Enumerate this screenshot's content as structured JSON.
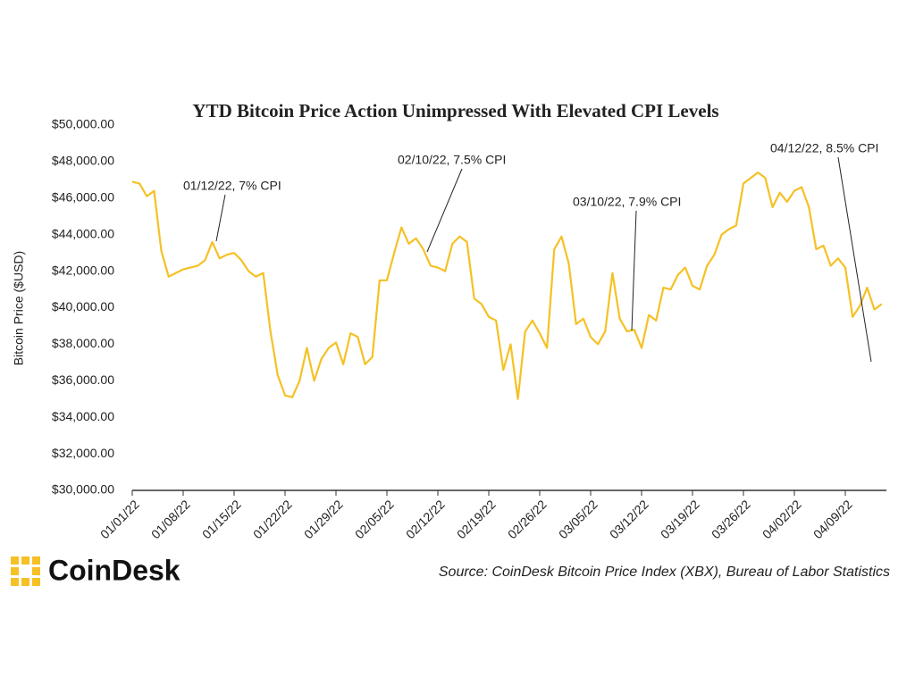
{
  "chart_data": {
    "type": "line",
    "title": "YTD Bitcoin Price Action Unimpressed With Elevated CPI Levels",
    "y_label": "Bitcoin Price ($USD)",
    "source": "Source: CoinDesk Bitcoin Price Index (XBX), Bureau of Labor Statistics",
    "brand": "CoinDesk",
    "annotations": [
      "01/12/22, 7% CPI",
      "02/10/22, 7.5% CPI",
      "03/10/22, 7.9% CPI",
      "04/12/22, 8.5% CPI"
    ],
    "categories": [
      "01/01/22",
      null,
      null,
      null,
      null,
      null,
      null,
      "01/08/22",
      null,
      null,
      null,
      null,
      null,
      null,
      "01/15/22",
      null,
      null,
      null,
      null,
      null,
      null,
      "01/22/22",
      null,
      null,
      null,
      null,
      null,
      null,
      "01/29/22",
      null,
      null,
      null,
      null,
      null,
      null,
      "02/05/22",
      null,
      null,
      null,
      null,
      null,
      null,
      "02/12/22",
      null,
      null,
      null,
      null,
      null,
      null,
      "02/19/22",
      null,
      null,
      null,
      null,
      null,
      null,
      "02/26/22",
      null,
      null,
      null,
      null,
      null,
      null,
      "03/05/22",
      null,
      null,
      null,
      null,
      null,
      null,
      "03/12/22",
      null,
      null,
      null,
      null,
      null,
      null,
      "03/19/22",
      null,
      null,
      null,
      null,
      null,
      null,
      "03/26/22",
      null,
      null,
      null,
      null,
      null,
      null,
      "04/02/22",
      null,
      null,
      null,
      null,
      null,
      null,
      "04/09/22",
      null,
      null,
      null,
      null,
      null
    ],
    "series": [
      {
        "name": "Bitcoin Price",
        "color": "#f5c125",
        "values": [
          46900,
          46800,
          46100,
          46400,
          43100,
          41700,
          41900,
          42100,
          42200,
          42300,
          42600,
          43600,
          42700,
          42900,
          43000,
          42600,
          42000,
          41700,
          41900,
          38700,
          36300,
          35200,
          35100,
          36000,
          37800,
          36000,
          37200,
          37800,
          38100,
          36900,
          38600,
          38400,
          36900,
          37300,
          41500,
          41500,
          43000,
          44400,
          43500,
          43800,
          43200,
          42300,
          42200,
          42000,
          43500,
          43900,
          43600,
          40500,
          40200,
          39500,
          39300,
          36600,
          38000,
          35000,
          38700,
          39300,
          38600,
          37800,
          43200,
          43900,
          42400,
          39100,
          39400,
          38400,
          38000,
          38700,
          41900,
          39400,
          38700,
          38800,
          37800,
          39600,
          39300,
          41100,
          41000,
          41800,
          42200,
          41200,
          41000,
          42300,
          42900,
          44000,
          44300,
          44500,
          46800,
          47100,
          47400,
          47100,
          45500,
          46300,
          45800,
          46400,
          46600,
          45500,
          43200,
          43400,
          42300,
          42700,
          42200,
          39500,
          40100,
          41100,
          39900,
          40200
        ]
      }
    ],
    "ylim": [
      30000,
      50000
    ],
    "yticks": [
      {
        "value": 30000,
        "label": "$30,000.00"
      },
      {
        "value": 32000,
        "label": "$32,000.00"
      },
      {
        "value": 34000,
        "label": "$34,000.00"
      },
      {
        "value": 36000,
        "label": "$36,000.00"
      },
      {
        "value": 38000,
        "label": "$38,000.00"
      },
      {
        "value": 40000,
        "label": "$40,000.00"
      },
      {
        "value": 42000,
        "label": "$42,000.00"
      },
      {
        "value": 44000,
        "label": "$44,000.00"
      },
      {
        "value": 46000,
        "label": "$46,000.00"
      },
      {
        "value": 48000,
        "label": "$48,000.00"
      },
      {
        "value": 50000,
        "label": "$50,000.00"
      }
    ],
    "grid": false
  }
}
